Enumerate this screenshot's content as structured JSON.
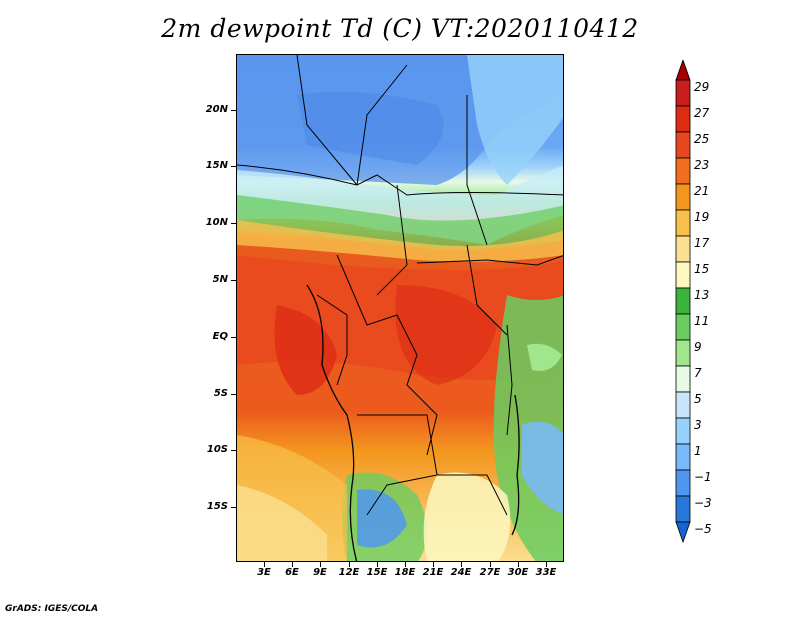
{
  "title": "2m dewpoint Td (C) VT:2020110412",
  "credit": "GrADS: IGES/COLA",
  "lat_labels": [
    "20N",
    "15N",
    "10N",
    "5N",
    "EQ",
    "5S",
    "10S",
    "15S"
  ],
  "lon_labels": [
    "3E",
    "6E",
    "9E",
    "12E",
    "15E",
    "18E",
    "21E",
    "24E",
    "27E",
    "30E",
    "33E"
  ],
  "colorbar": {
    "labels": [
      "29",
      "27",
      "25",
      "23",
      "21",
      "19",
      "17",
      "15",
      "13",
      "11",
      "9",
      "7",
      "5",
      "3",
      "1",
      "−1",
      "−3",
      "−5"
    ],
    "colors": [
      "#a50000",
      "#c81e1e",
      "#dc2c14",
      "#e8461e",
      "#f06e1e",
      "#f4961e",
      "#f8c04c",
      "#fae090",
      "#fcf8c0",
      "#3cb43c",
      "#6acd60",
      "#a0e68c",
      "#e6fae6",
      "#c8e6fa",
      "#96d2fa",
      "#78b9fa",
      "#5096f0",
      "#2878dc",
      "#1464d2"
    ]
  }
}
